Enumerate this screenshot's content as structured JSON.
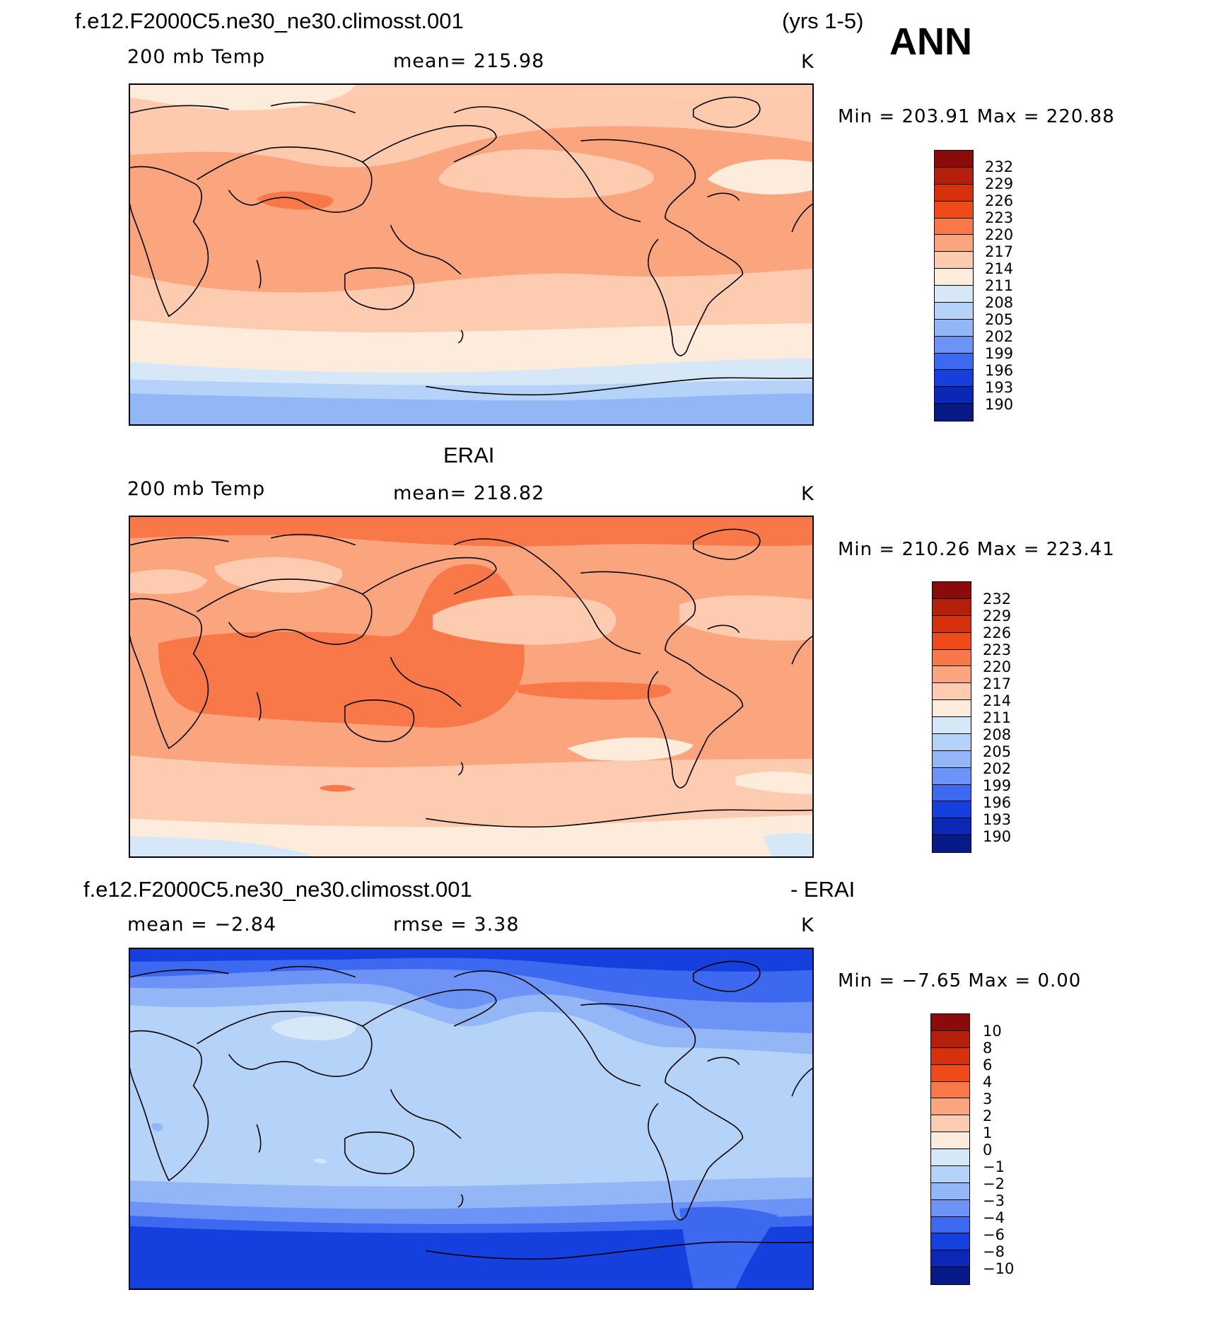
{
  "header": {
    "case_name": "f.e12.F2000C5.ne30_ne30.climosst.001",
    "years": "(yrs 1-5)",
    "season": "ANN"
  },
  "panels": [
    {
      "id": "model",
      "title": "",
      "variable": "200 mb Temp",
      "stat": "mean=  215.98",
      "units": "K",
      "minmax": "Min  =  203.91  Max  =  220.88",
      "colorbar": "abs"
    },
    {
      "id": "obs",
      "title": "ERAI",
      "variable": "200 mb Temp",
      "stat": "mean=  218.82",
      "units": "K",
      "minmax": "Min  =  210.26  Max  =  223.41",
      "colorbar": "abs"
    },
    {
      "id": "diff",
      "title_left": "f.e12.F2000C5.ne30_ne30.climosst.001",
      "title_right": "- ERAI",
      "variable": "mean  =   −2.84",
      "stat": "rmse  =     3.38",
      "units": "K",
      "minmax": "Min  =    −7.65  Max  =     0.00",
      "colorbar": "diff"
    }
  ],
  "colorbars": {
    "abs": {
      "labels": [
        "232",
        "229",
        "226",
        "223",
        "220",
        "217",
        "214",
        "211",
        "208",
        "205",
        "202",
        "199",
        "196",
        "193",
        "190"
      ],
      "colors": [
        "#8b0a0a",
        "#b5200d",
        "#d7300c",
        "#ee4a1a",
        "#f8784a",
        "#fba57f",
        "#fdcbb0",
        "#fdebdc",
        "#d6e8f8",
        "#b5d2f8",
        "#93b6f7",
        "#6c93f5",
        "#3d69f0",
        "#1540dd",
        "#0a27b5",
        "#071a88"
      ]
    },
    "diff": {
      "labels": [
        "10",
        "8",
        "6",
        "4",
        "3",
        "2",
        "1",
        "0",
        "−1",
        "−2",
        "−3",
        "−4",
        "−6",
        "−8",
        "−10"
      ],
      "colors": [
        "#8b0a0a",
        "#b5200d",
        "#d7300c",
        "#ee4a1a",
        "#f8784a",
        "#fba57f",
        "#fdcbb0",
        "#fdebdc",
        "#d6e8f8",
        "#b5d2f8",
        "#93b6f7",
        "#6c93f5",
        "#3d69f0",
        "#1540dd",
        "#0a27b5",
        "#071a88"
      ]
    }
  }
}
